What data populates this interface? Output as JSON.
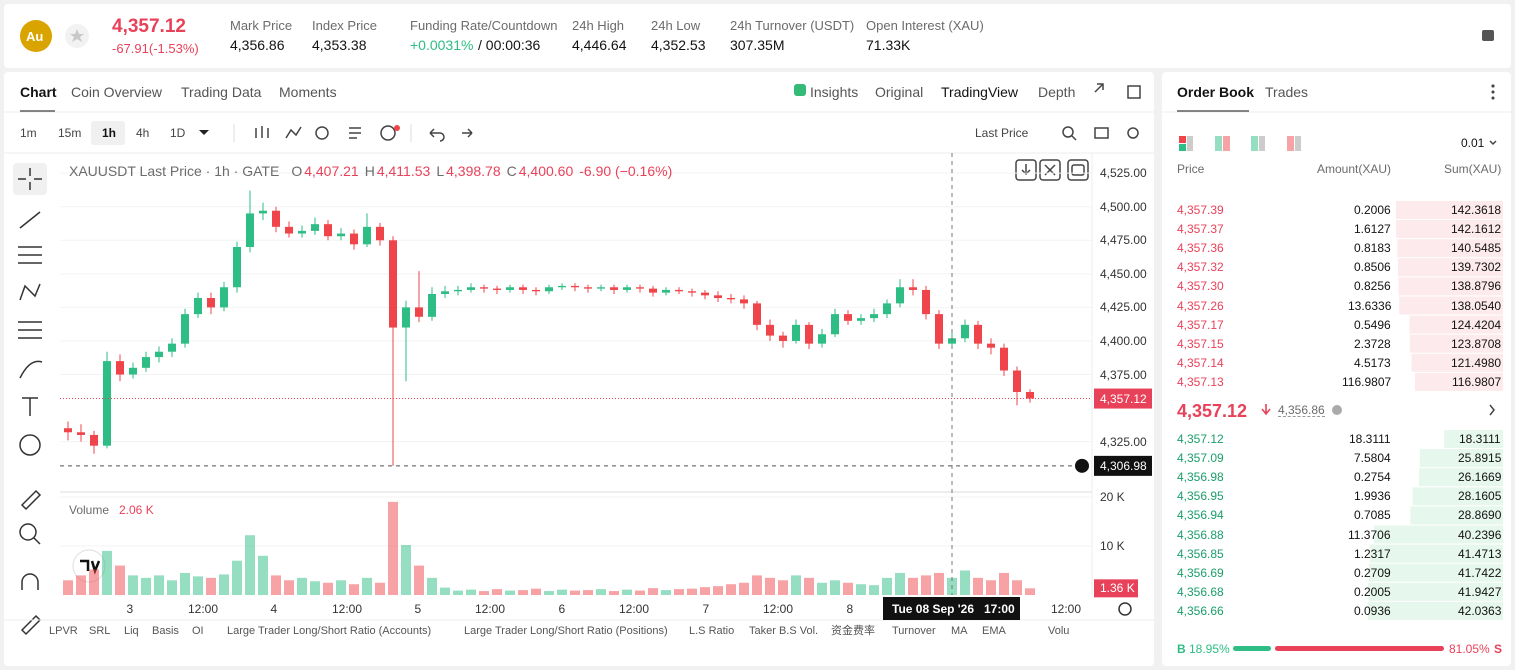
{
  "header": {
    "symbol": "Au",
    "price": "4,357.12",
    "change": "-67.91(-1.53%)",
    "stats": [
      {
        "label": "Mark Price",
        "value": "4,356.86"
      },
      {
        "label": "Index Price",
        "value": "4,353.38"
      },
      {
        "label": "Funding Rate/Countdown",
        "value": "+0.0031%",
        "countdown": "/ 00:00:36"
      },
      {
        "label": "24h High",
        "value": "4,446.64"
      },
      {
        "label": "24h Low",
        "value": "4,352.53"
      },
      {
        "label": "24h Turnover (USDT)",
        "value": "307.35M"
      },
      {
        "label": "Open Interest (XAU)",
        "value": "71.33K"
      }
    ]
  },
  "tabs": [
    "Chart",
    "Coin Overview",
    "Trading Data",
    "Moments"
  ],
  "views": [
    "Insights",
    "Original",
    "TradingView",
    "Depth"
  ],
  "intervals": [
    "1m",
    "15m",
    "1h",
    "4h",
    "1D"
  ],
  "price_type": "Last Price",
  "chart": {
    "type": "candlestick",
    "legend": {
      "name": "XAUUSDT Last Price · 1h · GATE",
      "o_label": "O",
      "o": "4,407.21",
      "h_label": "H",
      "h": "4,411.53",
      "l_label": "L",
      "l": "4,398.78",
      "c_label": "C",
      "c": "4,400.60",
      "change": "-6.90 (−0.16%)"
    },
    "up_color": "#2ebd85",
    "down_color": "#ef454a",
    "candles": [
      [
        4335,
        4340,
        4326,
        4332
      ],
      [
        4332,
        4338,
        4325,
        4330
      ],
      [
        4330,
        4333,
        4316,
        4322
      ],
      [
        4322,
        4392,
        4320,
        4385
      ],
      [
        4385,
        4390,
        4370,
        4375
      ],
      [
        4375,
        4384,
        4372,
        4380
      ],
      [
        4380,
        4392,
        4377,
        4388
      ],
      [
        4388,
        4396,
        4384,
        4392
      ],
      [
        4392,
        4402,
        4388,
        4398
      ],
      [
        4398,
        4424,
        4395,
        4420
      ],
      [
        4420,
        4436,
        4417,
        4432
      ],
      [
        4432,
        4436,
        4420,
        4425
      ],
      [
        4425,
        4444,
        4422,
        4440
      ],
      [
        4440,
        4474,
        4436,
        4470
      ],
      [
        4470,
        4512,
        4466,
        4495
      ],
      [
        4495,
        4503,
        4490,
        4497
      ],
      [
        4497,
        4500,
        4481,
        4485
      ],
      [
        4485,
        4489,
        4477,
        4480
      ],
      [
        4480,
        4486,
        4477,
        4482
      ],
      [
        4482,
        4492,
        4479,
        4487
      ],
      [
        4487,
        4490,
        4475,
        4478
      ],
      [
        4478,
        4484,
        4475,
        4480
      ],
      [
        4480,
        4483,
        4468,
        4472
      ],
      [
        4472,
        4495,
        4470,
        4485
      ],
      [
        4485,
        4488,
        4471,
        4475
      ],
      [
        4475,
        4478,
        4306.98,
        4410
      ],
      [
        4410,
        4430,
        4370,
        4425
      ],
      [
        4425,
        4452,
        4414,
        4418
      ],
      [
        4418,
        4440,
        4415,
        4435
      ],
      [
        4435,
        4441,
        4432,
        4437
      ],
      [
        4437,
        4441,
        4434,
        4438
      ],
      [
        4438,
        4443,
        4436,
        4440
      ],
      [
        4440,
        4442,
        4436,
        4439
      ],
      [
        4439,
        4441,
        4435,
        4438
      ],
      [
        4438,
        4442,
        4436,
        4440
      ],
      [
        4440,
        4442,
        4435,
        4438
      ],
      [
        4438,
        4440,
        4434,
        4437
      ],
      [
        4437,
        4442,
        4435,
        4440
      ],
      [
        4440,
        4443,
        4438,
        4441
      ],
      [
        4441,
        4443,
        4437,
        4440
      ],
      [
        4440,
        4442,
        4436,
        4439
      ],
      [
        4439,
        4442,
        4437,
        4440
      ],
      [
        4440,
        4442,
        4435,
        4438
      ],
      [
        4438,
        4442,
        4436,
        4440
      ],
      [
        4440,
        4442,
        4436,
        4439
      ],
      [
        4439,
        4441,
        4433,
        4436
      ],
      [
        4436,
        4440,
        4434,
        4438
      ],
      [
        4438,
        4440,
        4435,
        4437
      ],
      [
        4437,
        4439,
        4433,
        4436
      ],
      [
        4436,
        4438,
        4431,
        4434
      ],
      [
        4434,
        4437,
        4429,
        4432
      ],
      [
        4432,
        4435,
        4428,
        4431
      ],
      [
        4431,
        4434,
        4424,
        4428
      ],
      [
        4428,
        4430,
        4408,
        4412
      ],
      [
        4412,
        4416,
        4400,
        4404
      ],
      [
        4404,
        4407,
        4395,
        4400
      ],
      [
        4400,
        4416,
        4398,
        4412
      ],
      [
        4412,
        4414,
        4394,
        4398
      ],
      [
        4398,
        4409,
        4395,
        4405
      ],
      [
        4405,
        4424,
        4403,
        4420
      ],
      [
        4420,
        4423,
        4412,
        4415
      ],
      [
        4415,
        4420,
        4412,
        4417
      ],
      [
        4417,
        4424,
        4414,
        4420
      ],
      [
        4420,
        4431,
        4417,
        4428
      ],
      [
        4428,
        4446,
        4425,
        4440
      ],
      [
        4440,
        4446,
        4434,
        4438
      ],
      [
        4438,
        4441,
        4416,
        4420
      ],
      [
        4420,
        4423,
        4394,
        4398
      ],
      [
        4398,
        4406,
        4395,
        4402
      ],
      [
        4402,
        4416,
        4399,
        4412
      ],
      [
        4412,
        4415,
        4394,
        4398
      ],
      [
        4398,
        4402,
        4390,
        4395
      ],
      [
        4395,
        4398,
        4374,
        4378
      ],
      [
        4378,
        4381,
        4352,
        4362
      ],
      [
        4362,
        4364,
        4354,
        4357.12
      ]
    ],
    "volumes": [
      3000,
      4000,
      5200,
      9000,
      6000,
      4000,
      3500,
      4000,
      3000,
      4500,
      3800,
      3500,
      4200,
      7000,
      12200,
      8000,
      4000,
      3000,
      3500,
      2800,
      2500,
      3000,
      2200,
      3500,
      2500,
      19000,
      10200,
      6000,
      3500,
      1500,
      900,
      1100,
      800,
      1200,
      900,
      1000,
      1300,
      800,
      1100,
      900,
      1000,
      1200,
      800,
      1100,
      900,
      1400,
      1000,
      1200,
      1300,
      1600,
      1800,
      2200,
      2500,
      4000,
      3500,
      3000,
      4000,
      3500,
      2500,
      3000,
      2500,
      2200,
      2000,
      3500,
      4500,
      3500,
      4000,
      4500,
      3500,
      5000,
      3500,
      3000,
      4500,
      3000,
      1360
    ],
    "ylim": [
      4289,
      4540
    ],
    "yticks": [
      {
        "value": 4325,
        "label": "4,325.00"
      },
      {
        "value": 4375,
        "label": "4,375.00"
      },
      {
        "value": 4400,
        "label": "4,400.00"
      },
      {
        "value": 4425,
        "label": "4,425.00"
      },
      {
        "value": 4450,
        "label": "4,450.00"
      },
      {
        "value": 4475,
        "label": "4,475.00"
      },
      {
        "value": 4500,
        "label": "4,500.00"
      },
      {
        "value": 4525,
        "label": "4,525.00"
      }
    ],
    "last_price": {
      "value": 4357.12,
      "label": "4,357.12"
    },
    "cursor_price": {
      "value": 4306.98,
      "label": "4,306.98"
    },
    "volume_title": "Volume",
    "volume_value": "2.06 K",
    "volume_ylim": [
      0,
      20400
    ],
    "volume_ticks": [
      {
        "value": 10000,
        "label": "10 K"
      },
      {
        "value": 20000,
        "label": "20 K"
      }
    ],
    "last_volume": {
      "value": 1360,
      "label": "1.36 K"
    },
    "xticks": [
      "3",
      "12:00",
      "4",
      "12:00",
      "5",
      "12:00",
      "6",
      "12:00",
      "7",
      "12:00",
      "8",
      "12:00"
    ],
    "cursor_time": "Tue 08 Sep '26   17:00"
  },
  "indicators": [
    "LPVR",
    "SRL",
    "Liq",
    "Basis",
    "OI",
    "Large Trader Long/Short Ratio (Accounts)",
    "Large Trader Long/Short Ratio (Positions)",
    "L.S Ratio",
    "Taker B.S Vol.",
    "资金费率",
    "Turnover",
    "MA",
    "EMA",
    "Volu"
  ],
  "order_book": {
    "tabs": [
      "Order Book",
      "Trades"
    ],
    "precision": "0.01",
    "columns": [
      "Price",
      "Amount(XAU)",
      "Sum(XAU)"
    ],
    "asks": [
      {
        "price": "4,357.39",
        "amount": "0.2006",
        "sum": {
          "value": 142.3618,
          "label": "142.3618"
        }
      },
      {
        "price": "4,357.37",
        "amount": "1.6127",
        "sum": {
          "value": 142.1612,
          "label": "142.1612"
        }
      },
      {
        "price": "4,357.36",
        "amount": "0.8183",
        "sum": {
          "value": 140.5485,
          "label": "140.5485"
        }
      },
      {
        "price": "4,357.32",
        "amount": "0.8506",
        "sum": {
          "value": 139.7302,
          "label": "139.7302"
        }
      },
      {
        "price": "4,357.30",
        "amount": "0.8256",
        "sum": {
          "value": 138.8796,
          "label": "138.8796"
        }
      },
      {
        "price": "4,357.26",
        "amount": "13.6336",
        "sum": {
          "value": 138.054,
          "label": "138.0540"
        }
      },
      {
        "price": "4,357.17",
        "amount": "0.5496",
        "sum": {
          "value": 124.4204,
          "label": "124.4204"
        }
      },
      {
        "price": "4,357.15",
        "amount": "2.3728",
        "sum": {
          "value": 123.8708,
          "label": "123.8708"
        }
      },
      {
        "price": "4,357.14",
        "amount": "4.5173",
        "sum": {
          "value": 121.498,
          "label": "121.4980"
        }
      },
      {
        "price": "4,357.13",
        "amount": "116.9807",
        "sum": {
          "value": 116.9807,
          "label": "116.9807"
        }
      }
    ],
    "last_price": "4,357.12",
    "mark_price": "4,356.86",
    "bids": [
      {
        "price": "4,357.12",
        "amount": "18.3111",
        "sum": {
          "value": 18.3111,
          "label": "18.3111"
        }
      },
      {
        "price": "4,357.09",
        "amount": "7.5804",
        "sum": {
          "value": 25.8915,
          "label": "25.8915"
        }
      },
      {
        "price": "4,356.98",
        "amount": "0.2754",
        "sum": {
          "value": 26.1669,
          "label": "26.1669"
        }
      },
      {
        "price": "4,356.95",
        "amount": "1.9936",
        "sum": {
          "value": 28.1605,
          "label": "28.1605"
        }
      },
      {
        "price": "4,356.94",
        "amount": "0.7085",
        "sum": {
          "value": 28.869,
          "label": "28.8690"
        }
      },
      {
        "price": "4,356.88",
        "amount": "11.3706",
        "sum": {
          "value": 40.2396,
          "label": "40.2396"
        }
      },
      {
        "price": "4,356.85",
        "amount": "1.2317",
        "sum": {
          "value": 41.4713,
          "label": "41.4713"
        }
      },
      {
        "price": "4,356.69",
        "amount": "0.2709",
        "sum": {
          "value": 41.7422,
          "label": "41.7422"
        }
      },
      {
        "price": "4,356.68",
        "amount": "0.2005",
        "sum": {
          "value": 41.9427,
          "label": "41.9427"
        }
      },
      {
        "price": "4,356.66",
        "amount": "0.0936",
        "sum": {
          "value": 42.0363,
          "label": "42.0363"
        }
      }
    ],
    "buy_label": "B",
    "buy_ratio": {
      "value": 18.95,
      "label": "18.95%"
    },
    "sell_label": "S",
    "sell_ratio": {
      "value": 81.05,
      "label": "81.05%"
    }
  }
}
